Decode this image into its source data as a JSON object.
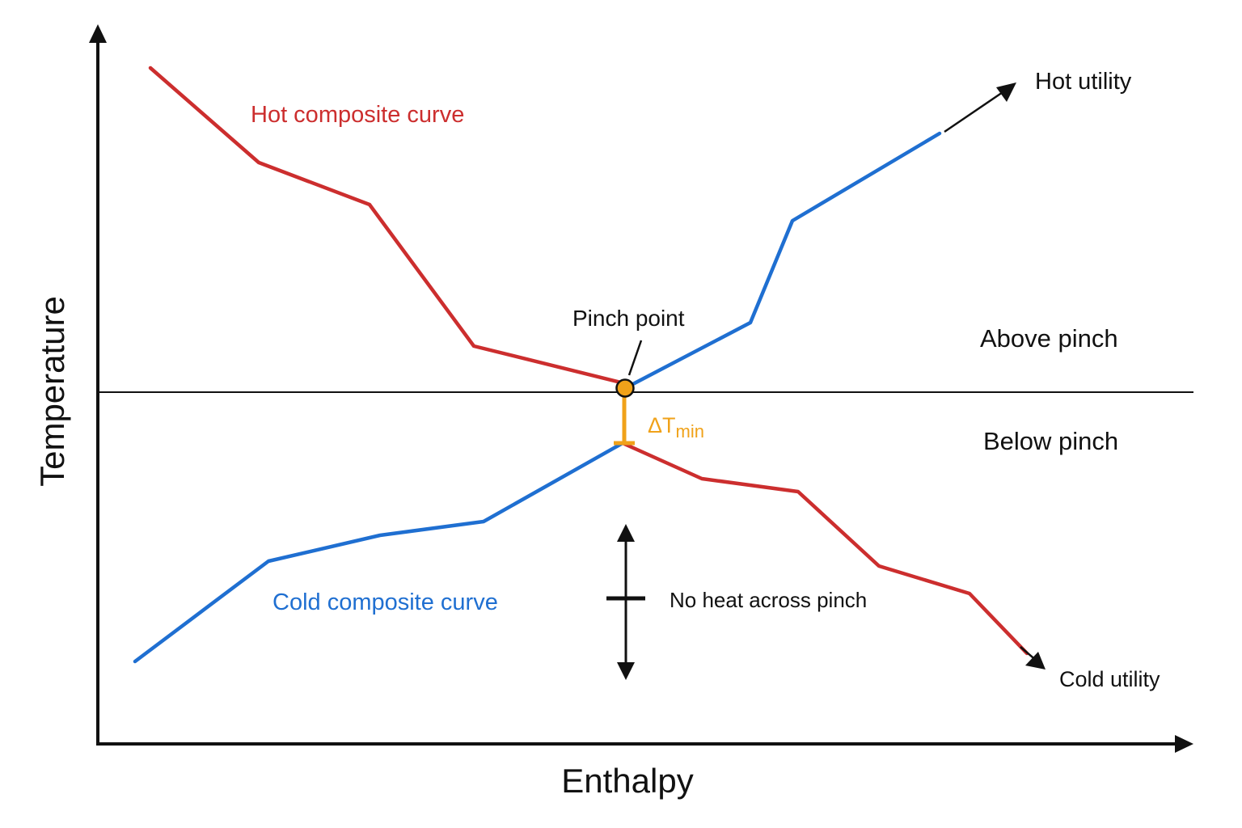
{
  "axes": {
    "x_label": "Enthalpy",
    "y_label": "Temperature"
  },
  "colors": {
    "hot": "#cc2e2e",
    "cold": "#1f6fd1",
    "pinch": "#f0a21a",
    "axis": "#111111"
  },
  "labels": {
    "hot_curve": "Hot composite curve",
    "cold_curve": "Cold composite curve",
    "pinch_point": "Pinch point",
    "delta_t_symbol": "ΔT",
    "delta_t_subscript": "min",
    "above_pinch": "Above pinch",
    "below_pinch": "Below pinch",
    "no_heat": "No heat across pinch",
    "hot_utility": "Hot utility",
    "cold_utility": "Cold utility"
  }
}
